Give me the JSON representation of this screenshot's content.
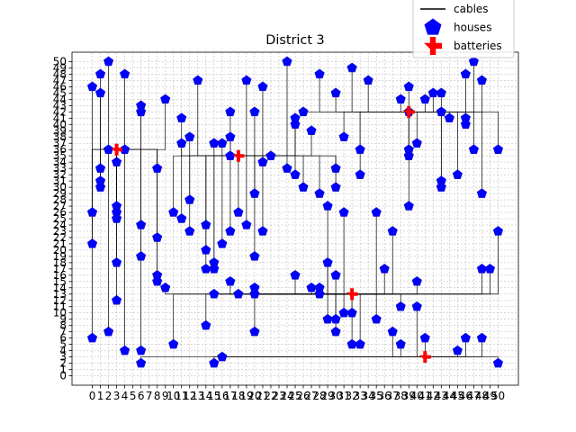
{
  "chart_data": {
    "type": "scatter",
    "title": "District 3",
    "xlim": [
      -2.5,
      52.5
    ],
    "ylim": [
      -1.5,
      51.5
    ],
    "xticks": [
      0,
      1,
      2,
      3,
      4,
      5,
      6,
      7,
      8,
      9,
      10,
      11,
      12,
      13,
      14,
      15,
      16,
      17,
      18,
      19,
      20,
      21,
      22,
      23,
      24,
      25,
      26,
      27,
      28,
      29,
      30,
      31,
      32,
      33,
      34,
      35,
      36,
      37,
      38,
      39,
      40,
      41,
      42,
      43,
      44,
      45,
      46,
      47,
      48,
      49,
      50
    ],
    "yticks": [
      0,
      1,
      2,
      3,
      4,
      5,
      6,
      7,
      8,
      9,
      10,
      11,
      12,
      13,
      14,
      15,
      16,
      17,
      18,
      19,
      20,
      21,
      22,
      23,
      24,
      25,
      26,
      27,
      28,
      29,
      30,
      31,
      32,
      33,
      34,
      35,
      36,
      37,
      38,
      39,
      40,
      41,
      42,
      43,
      44,
      45,
      46,
      47,
      48,
      49,
      50
    ],
    "grid": true,
    "legend": {
      "position": "top-right",
      "entries": [
        {
          "label": "cables",
          "marker": "line",
          "color": "#000000"
        },
        {
          "label": "houses",
          "marker": "pentagon",
          "color": "#0000ff"
        },
        {
          "label": "batteries",
          "marker": "plus",
          "color": "#ff0000"
        }
      ]
    },
    "series": [
      {
        "name": "houses",
        "color": "#0000ff",
        "points": [
          [
            2,
            50
          ],
          [
            24,
            50
          ],
          [
            32,
            49
          ],
          [
            47,
            50
          ],
          [
            1,
            48
          ],
          [
            4,
            48
          ],
          [
            28,
            48
          ],
          [
            46,
            48
          ],
          [
            13,
            47
          ],
          [
            19,
            47
          ],
          [
            34,
            47
          ],
          [
            48,
            47
          ],
          [
            0,
            46
          ],
          [
            21,
            46
          ],
          [
            39,
            46
          ],
          [
            1,
            45
          ],
          [
            30,
            45
          ],
          [
            42,
            45
          ],
          [
            43,
            45
          ],
          [
            9,
            44
          ],
          [
            38,
            44
          ],
          [
            41,
            44
          ],
          [
            6,
            43
          ],
          [
            6,
            42
          ],
          [
            17,
            42
          ],
          [
            20,
            42
          ],
          [
            26,
            42
          ],
          [
            39,
            42
          ],
          [
            43,
            42
          ],
          [
            11,
            41
          ],
          [
            25,
            41
          ],
          [
            44,
            41
          ],
          [
            46,
            41
          ],
          [
            25,
            40
          ],
          [
            46,
            40
          ],
          [
            27,
            39
          ],
          [
            12,
            38
          ],
          [
            17,
            38
          ],
          [
            31,
            38
          ],
          [
            11,
            37
          ],
          [
            15,
            37
          ],
          [
            16,
            37
          ],
          [
            40,
            37
          ],
          [
            2,
            36
          ],
          [
            4,
            36
          ],
          [
            33,
            36
          ],
          [
            39,
            36
          ],
          [
            47,
            36
          ],
          [
            50,
            36
          ],
          [
            17,
            35
          ],
          [
            22,
            35
          ],
          [
            39,
            35
          ],
          [
            3,
            34
          ],
          [
            21,
            34
          ],
          [
            1,
            33
          ],
          [
            8,
            33
          ],
          [
            24,
            33
          ],
          [
            30,
            33
          ],
          [
            25,
            32
          ],
          [
            33,
            32
          ],
          [
            45,
            32
          ],
          [
            1,
            31
          ],
          [
            43,
            31
          ],
          [
            1,
            30
          ],
          [
            26,
            30
          ],
          [
            30,
            30
          ],
          [
            43,
            30
          ],
          [
            20,
            29
          ],
          [
            28,
            29
          ],
          [
            48,
            29
          ],
          [
            12,
            28
          ],
          [
            3,
            27
          ],
          [
            29,
            27
          ],
          [
            39,
            27
          ],
          [
            0,
            26
          ],
          [
            3,
            26
          ],
          [
            10,
            26
          ],
          [
            18,
            26
          ],
          [
            31,
            26
          ],
          [
            35,
            26
          ],
          [
            3,
            25
          ],
          [
            11,
            25
          ],
          [
            6,
            24
          ],
          [
            14,
            24
          ],
          [
            19,
            24
          ],
          [
            12,
            23
          ],
          [
            17,
            23
          ],
          [
            21,
            23
          ],
          [
            37,
            23
          ],
          [
            50,
            23
          ],
          [
            8,
            22
          ],
          [
            0,
            21
          ],
          [
            16,
            21
          ],
          [
            14,
            20
          ],
          [
            6,
            19
          ],
          [
            20,
            19
          ],
          [
            3,
            18
          ],
          [
            15,
            18
          ],
          [
            29,
            18
          ],
          [
            14,
            17
          ],
          [
            15,
            17
          ],
          [
            36,
            17
          ],
          [
            48,
            17
          ],
          [
            49,
            17
          ],
          [
            8,
            16
          ],
          [
            25,
            16
          ],
          [
            30,
            16
          ],
          [
            8,
            15
          ],
          [
            17,
            15
          ],
          [
            40,
            15
          ],
          [
            9,
            14
          ],
          [
            20,
            14
          ],
          [
            27,
            14
          ],
          [
            28,
            14
          ],
          [
            15,
            13
          ],
          [
            18,
            13
          ],
          [
            20,
            13
          ],
          [
            28,
            13
          ],
          [
            3,
            12
          ],
          [
            38,
            11
          ],
          [
            40,
            11
          ],
          [
            31,
            10
          ],
          [
            32,
            10
          ],
          [
            29,
            9
          ],
          [
            30,
            9
          ],
          [
            35,
            9
          ],
          [
            14,
            8
          ],
          [
            2,
            7
          ],
          [
            20,
            7
          ],
          [
            30,
            7
          ],
          [
            37,
            7
          ],
          [
            0,
            6
          ],
          [
            41,
            6
          ],
          [
            46,
            6
          ],
          [
            48,
            6
          ],
          [
            10,
            5
          ],
          [
            32,
            5
          ],
          [
            33,
            5
          ],
          [
            38,
            5
          ],
          [
            4,
            4
          ],
          [
            6,
            4
          ],
          [
            45,
            4
          ],
          [
            16,
            3
          ],
          [
            6,
            2
          ],
          [
            15,
            2
          ],
          [
            50,
            2
          ]
        ]
      },
      {
        "name": "batteries",
        "color": "#ff0000",
        "points": [
          [
            39,
            42
          ],
          [
            18,
            35
          ],
          [
            3,
            36
          ],
          [
            32,
            13
          ],
          [
            41,
            3
          ]
        ]
      }
    ]
  }
}
